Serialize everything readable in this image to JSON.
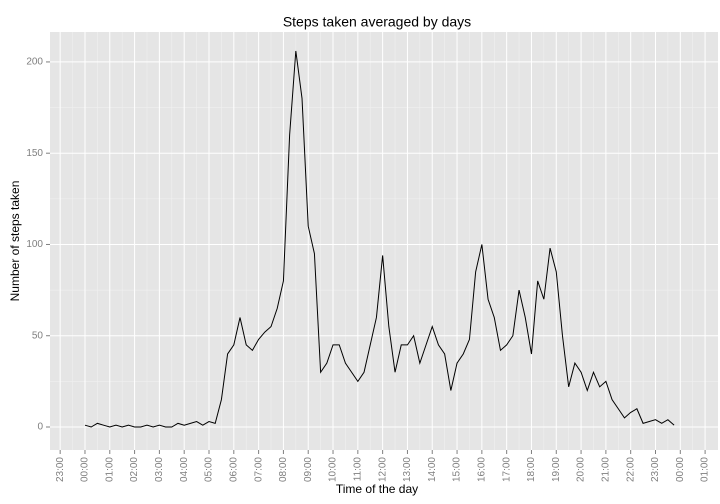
{
  "chart_data": {
    "type": "line",
    "title": "Steps taken averaged by days",
    "x_label": "Time of the day",
    "y_label": "Number of steps taken",
    "x": [
      0,
      0.25,
      0.5,
      0.75,
      1,
      1.25,
      1.5,
      1.75,
      2,
      2.25,
      2.5,
      2.75,
      3,
      3.25,
      3.5,
      3.75,
      4,
      4.25,
      4.5,
      4.75,
      5,
      5.25,
      5.5,
      5.75,
      6,
      6.25,
      6.5,
      6.75,
      7,
      7.25,
      7.5,
      7.75,
      8,
      8.25,
      8.5,
      8.75,
      9,
      9.25,
      9.5,
      9.75,
      10,
      10.25,
      10.5,
      10.75,
      11,
      11.25,
      11.5,
      11.75,
      12,
      12.25,
      12.5,
      12.75,
      13,
      13.25,
      13.5,
      13.75,
      14,
      14.25,
      14.5,
      14.75,
      15,
      15.25,
      15.5,
      15.75,
      16,
      16.25,
      16.5,
      16.75,
      17,
      17.25,
      17.5,
      17.75,
      18,
      18.25,
      18.5,
      18.75,
      19,
      19.25,
      19.5,
      19.75,
      20,
      20.25,
      20.5,
      20.75,
      21,
      21.25,
      21.5,
      21.75,
      22,
      22.25,
      22.5,
      22.75,
      23,
      23.25,
      23.5,
      23.75
    ],
    "series": [
      {
        "color": "#000000",
        "values": [
          1,
          0,
          2,
          1,
          0,
          1,
          0,
          1,
          0,
          0,
          1,
          0,
          1,
          0,
          0,
          2,
          1,
          2,
          3,
          1,
          3,
          2,
          15,
          40,
          45,
          60,
          45,
          42,
          48,
          52,
          55,
          65,
          80,
          160,
          206,
          180,
          110,
          95,
          30,
          35,
          45,
          45,
          35,
          30,
          25,
          30,
          45,
          60,
          94,
          55,
          30,
          45,
          45,
          50,
          35,
          45,
          55,
          45,
          40,
          20,
          35,
          40,
          48,
          85,
          100,
          70,
          60,
          42,
          45,
          50,
          75,
          60,
          40,
          80,
          70,
          98,
          85,
          50,
          22,
          35,
          30,
          20,
          30,
          22,
          25,
          15,
          10,
          5,
          8,
          10,
          2,
          3,
          4,
          2,
          4,
          1
        ]
      }
    ],
    "xlim": [
      -1.41,
      25.52
    ],
    "xticks": [
      {
        "value": -1,
        "label": "23:00"
      },
      {
        "value": 0,
        "label": "00:00"
      },
      {
        "value": 1,
        "label": "01:00"
      },
      {
        "value": 2,
        "label": "02:00"
      },
      {
        "value": 3,
        "label": "03:00"
      },
      {
        "value": 4,
        "label": "04:00"
      },
      {
        "value": 5,
        "label": "05:00"
      },
      {
        "value": 6,
        "label": "06:00"
      },
      {
        "value": 7,
        "label": "07:00"
      },
      {
        "value": 8,
        "label": "08:00"
      },
      {
        "value": 9,
        "label": "09:00"
      },
      {
        "value": 10,
        "label": "10:00"
      },
      {
        "value": 11,
        "label": "11:00"
      },
      {
        "value": 12,
        "label": "12:00"
      },
      {
        "value": 13,
        "label": "13:00"
      },
      {
        "value": 14,
        "label": "14:00"
      },
      {
        "value": 15,
        "label": "15:00"
      },
      {
        "value": 16,
        "label": "16:00"
      },
      {
        "value": 17,
        "label": "17:00"
      },
      {
        "value": 18,
        "label": "18:00"
      },
      {
        "value": 19,
        "label": "19:00"
      },
      {
        "value": 20,
        "label": "20:00"
      },
      {
        "value": 21,
        "label": "21:00"
      },
      {
        "value": 22,
        "label": "22:00"
      },
      {
        "value": 23,
        "label": "23:00"
      },
      {
        "value": 24,
        "label": "00:00"
      },
      {
        "value": 25,
        "label": "01:00"
      }
    ],
    "ylim": [
      -12.6,
      216.4
    ],
    "yticks": [
      0,
      50,
      100,
      150,
      200
    ],
    "grid": true
  }
}
